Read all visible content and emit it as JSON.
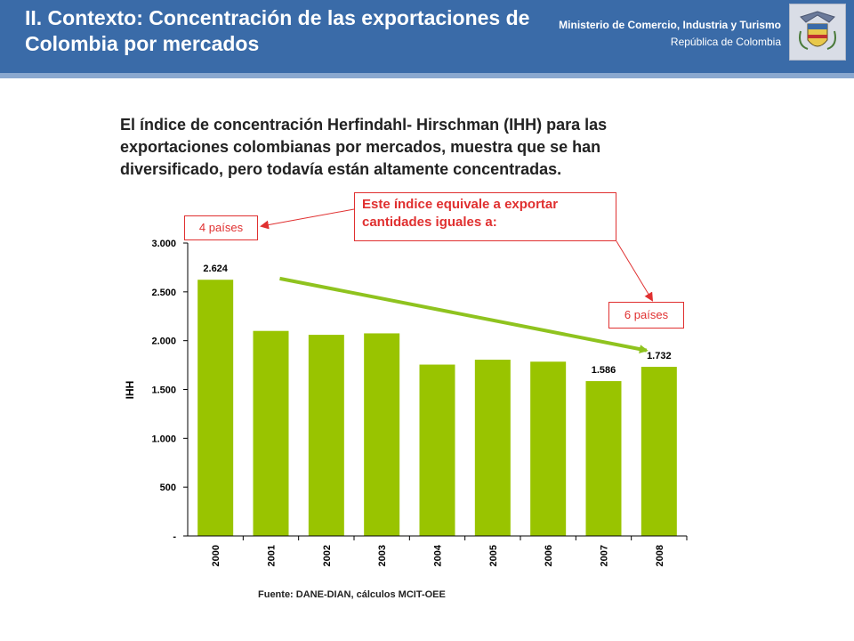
{
  "header": {
    "title": "II. Contexto: Concentración de las exportaciones de Colombia por mercados",
    "ministry": "Ministerio de Comercio, Industria y Turismo",
    "country": "República de Colombia",
    "logo_icon": "coat-of-arms-icon"
  },
  "intro_text": "El índice de concentración Herfindahl- Hirschman (IHH) para las exportaciones colombianas por mercados, muestra que se han diversificado, pero todavía están altamente concentradas.",
  "callouts": {
    "main": "Este índice equivale a exportar cantidades iguales a:",
    "left": "4 países",
    "right": "6 países"
  },
  "source": "Fuente: DANE-DIAN, cálculos MCIT-OEE",
  "colors": {
    "header": "#3a6ba8",
    "bars": "#99c400",
    "trend": "#8fc31f",
    "callout": "#e03030"
  },
  "chart_data": {
    "type": "bar",
    "categories": [
      "2000",
      "2001",
      "2002",
      "2003",
      "2004",
      "2005",
      "2006",
      "2007",
      "2008"
    ],
    "values": [
      2624,
      2100,
      2060,
      2075,
      1755,
      1805,
      1785,
      1586,
      1732
    ],
    "data_labels": [
      {
        "index": 0,
        "text": "2.624"
      },
      {
        "index": 7,
        "text": "1.586"
      },
      {
        "index": 8,
        "text": "1.732"
      }
    ],
    "ylabel": "IHH",
    "ylim": [
      0,
      3000
    ],
    "yticks": [
      {
        "value": 0,
        "label": "-"
      },
      {
        "value": 500,
        "label": "500"
      },
      {
        "value": 1000,
        "label": "1.000"
      },
      {
        "value": 1500,
        "label": "1.500"
      },
      {
        "value": 2000,
        "label": "2.000"
      },
      {
        "value": 2500,
        "label": "2.500"
      },
      {
        "value": 3000,
        "label": "3.000"
      }
    ],
    "trend_arrow": {
      "from_category": "2001",
      "from_value": 2600,
      "to_category": "2008",
      "to_value": 1900
    }
  }
}
